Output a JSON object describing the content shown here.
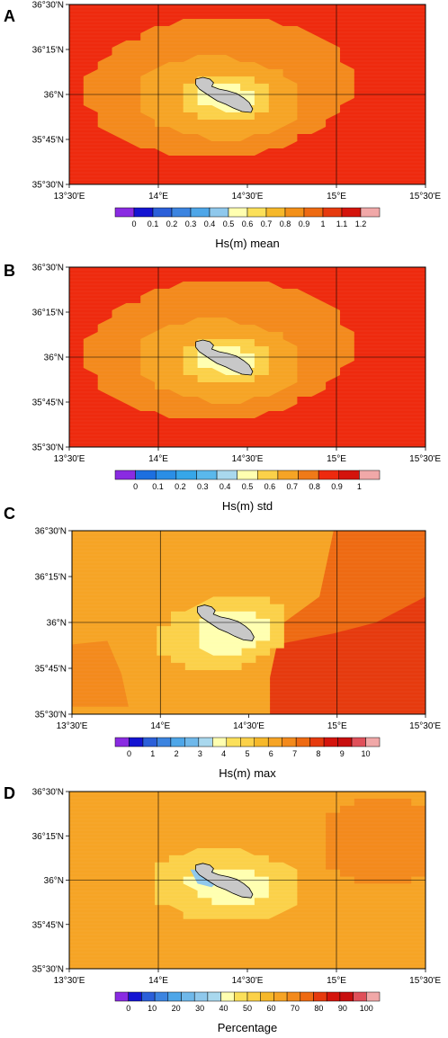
{
  "panels": [
    {
      "label": "A",
      "title": "Hs(m) mean",
      "lat_ticks": [
        "36°30'N",
        "36°15'N",
        "36°N",
        "35°45'N",
        "35°30'N"
      ],
      "lon_ticks": [
        "13°30'E",
        "14°E",
        "14°30'E",
        "15°E",
        "15°30'E"
      ],
      "colorbar_labels": [
        "0",
        "0.1",
        "0.2",
        "0.3",
        "0.4",
        "0.5",
        "0.6",
        "0.7",
        "0.8",
        "0.9",
        "1",
        "1.1",
        "1.2"
      ],
      "colorbar_colors": [
        "#8a2be2",
        "#1414d2",
        "#2b5fd9",
        "#3c84e0",
        "#4ea6e8",
        "#8fc8ec",
        "#ffffb0",
        "#fbe05a",
        "#f6b82a",
        "#f39019",
        "#ee6a12",
        "#e63a0e",
        "#d4140c",
        "#f1a8a8"
      ],
      "field": {
        "background": "#ee2a0e",
        "zones": [
          {
            "name": "outer-ring",
            "color": "#f38a1c"
          },
          {
            "name": "mid-ring",
            "color": "#f6a425"
          },
          {
            "name": "inner-ring",
            "color": "#fbd149"
          },
          {
            "name": "near-shore",
            "color": "#ffffb0"
          }
        ]
      }
    },
    {
      "label": "B",
      "title": "Hs(m) std",
      "lat_ticks": [
        "36°30'N",
        "36°15'N",
        "36°N",
        "35°45'N",
        "35°30'N"
      ],
      "lon_ticks": [
        "13°30'E",
        "14°E",
        "14°30'E",
        "15°E",
        "15°30'E"
      ],
      "colorbar_labels": [
        "0",
        "0.1",
        "0.2",
        "0.3",
        "0.4",
        "0.5",
        "0.6",
        "0.7",
        "0.8",
        "0.9",
        "1"
      ],
      "colorbar_colors": [
        "#8a2be2",
        "#1c6fe0",
        "#2a8ee6",
        "#36a6e9",
        "#5ab8ec",
        "#a9d8ee",
        "#ffffb0",
        "#fbd149",
        "#f6a425",
        "#f07a18",
        "#ee2a0e",
        "#d4140c",
        "#f1a8a8"
      ],
      "field": {
        "background": "#ee2a0e",
        "zones": [
          {
            "name": "outer-ring",
            "color": "#f38a1c"
          },
          {
            "name": "mid-ring",
            "color": "#f6a425"
          },
          {
            "name": "inner-ring",
            "color": "#fbd149"
          },
          {
            "name": "near-shore",
            "color": "#ffffb0"
          }
        ]
      }
    },
    {
      "label": "C",
      "title": "Hs(m) max",
      "lat_ticks": [
        "36°30'N",
        "36°15'N",
        "36°N",
        "35°45'N",
        "35°30'N"
      ],
      "lon_ticks": [
        "13°30'E",
        "14°E",
        "14°30'E",
        "15°E",
        "15°30'E"
      ],
      "colorbar_labels": [
        "0",
        "1",
        "2",
        "3",
        "4",
        "5",
        "6",
        "7",
        "8",
        "9",
        "10"
      ],
      "colorbar_colors": [
        "#8a2be2",
        "#1414d2",
        "#2b5fd9",
        "#3c84e0",
        "#4ea6e8",
        "#6fb8ea",
        "#a9d8ee",
        "#ffffb0",
        "#fbe05a",
        "#fbd149",
        "#f6b82a",
        "#f6a425",
        "#f38a1c",
        "#ee6a12",
        "#e63a0e",
        "#d4140c",
        "#c80e0e",
        "#e0505a",
        "#f1a8a8"
      ],
      "field": {
        "background": "#f6a425",
        "zones": [
          {
            "name": "north-east",
            "color": "#ee6a12"
          },
          {
            "name": "south-east",
            "color": "#e63a0e"
          },
          {
            "name": "inner-ring",
            "color": "#fbd149"
          },
          {
            "name": "near-shore",
            "color": "#ffffb0"
          },
          {
            "name": "west-patch",
            "color": "#f38a1c"
          }
        ]
      }
    },
    {
      "label": "D",
      "title": "Percentage",
      "lat_ticks": [
        "36°30'N",
        "36°15'N",
        "36°N",
        "35°45'N",
        "35°30'N"
      ],
      "lon_ticks": [
        "13°30'E",
        "14°E",
        "14°30'E",
        "15°E",
        "15°30'E"
      ],
      "colorbar_labels": [
        "0",
        "10",
        "20",
        "30",
        "40",
        "50",
        "60",
        "70",
        "80",
        "90",
        "100"
      ],
      "colorbar_colors": [
        "#8a2be2",
        "#1414d2",
        "#2b5fd9",
        "#3c84e0",
        "#4ea6e8",
        "#6fb8ea",
        "#8fc8ec",
        "#a9d8ee",
        "#ffffb0",
        "#fbe05a",
        "#fbd149",
        "#f6b82a",
        "#f6a425",
        "#f38a1c",
        "#ee6a12",
        "#e63a0e",
        "#d4140c",
        "#c80e0e",
        "#e0505a",
        "#f1a8a8"
      ],
      "field": {
        "background": "#f6a425",
        "zones": [
          {
            "name": "north-east",
            "color": "#f38a1c"
          },
          {
            "name": "inner-ring",
            "color": "#fbd149"
          },
          {
            "name": "near-shore",
            "color": "#ffffb0"
          },
          {
            "name": "sheltered-cove",
            "color": "#8fc8ec"
          }
        ]
      }
    }
  ],
  "land_color": "#c8c8c8"
}
